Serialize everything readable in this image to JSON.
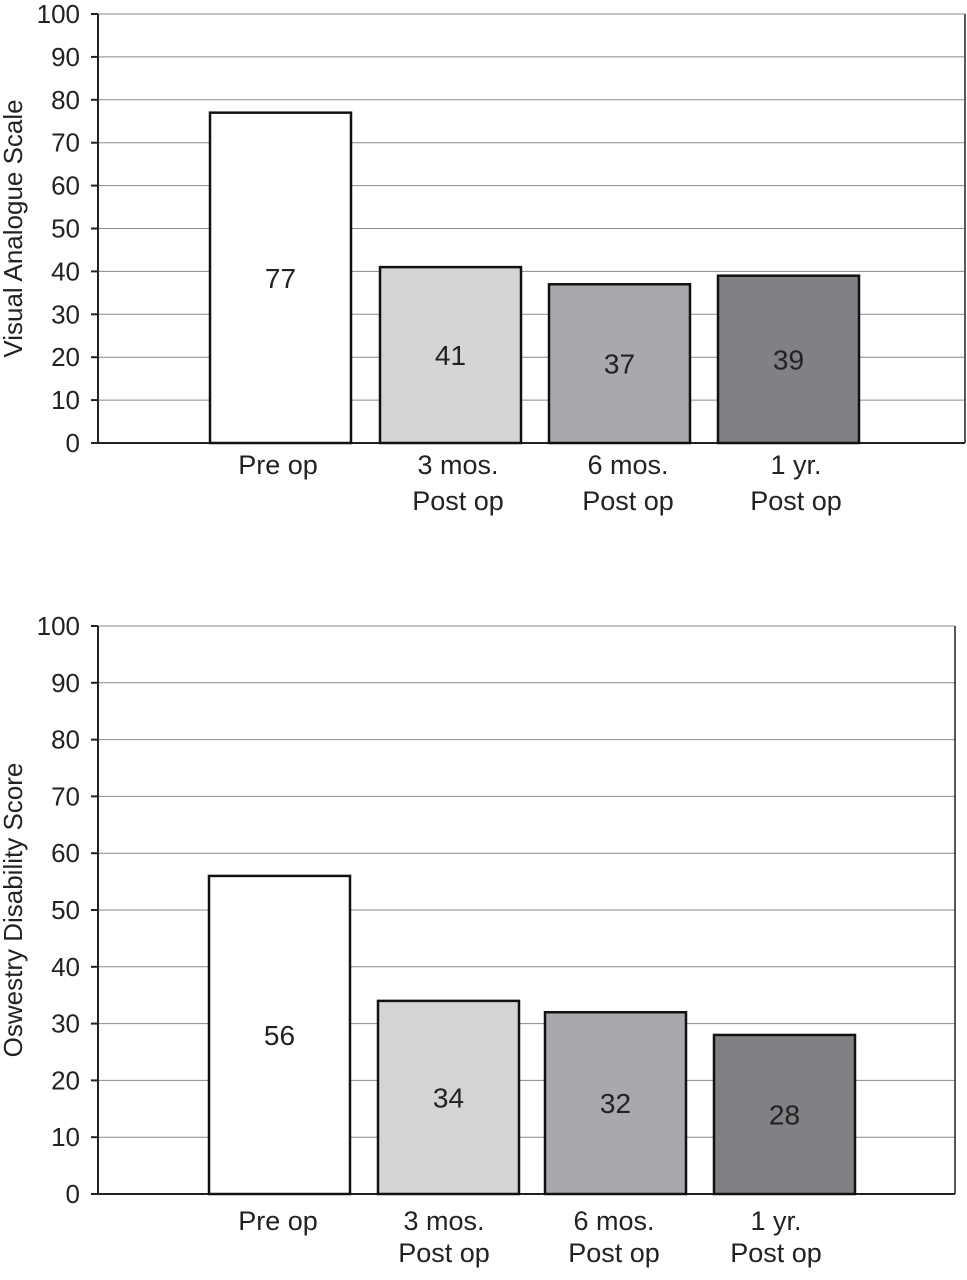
{
  "chart_data": [
    {
      "type": "bar",
      "ylabel": "Visual Analogue Scale",
      "xlabel": "",
      "ylim": [
        0,
        100
      ],
      "yticks": [
        0,
        10,
        20,
        30,
        40,
        50,
        60,
        70,
        80,
        90,
        100
      ],
      "grid": true,
      "categories": [
        {
          "line1": "Pre op",
          "line2": ""
        },
        {
          "line1": "3 mos.",
          "line2": "Post op"
        },
        {
          "line1": "6 mos.",
          "line2": "Post op"
        },
        {
          "line1": "1 yr.",
          "line2": "Post op"
        }
      ],
      "values": [
        77,
        41,
        37,
        39
      ],
      "colors": [
        "#ffffff",
        "#d3d4d6",
        "#a8a9ac",
        "#808184"
      ]
    },
    {
      "type": "bar",
      "ylabel": "Oswestry Disability Score",
      "xlabel": "",
      "ylim": [
        0,
        100
      ],
      "yticks": [
        0,
        10,
        20,
        30,
        40,
        50,
        60,
        70,
        80,
        90,
        100
      ],
      "grid": true,
      "categories": [
        {
          "line1": "Pre op",
          "line2": ""
        },
        {
          "line1": "3 mos.",
          "line2": "Post op"
        },
        {
          "line1": "6 mos.",
          "line2": "Post op"
        },
        {
          "line1": "1 yr.",
          "line2": "Post op"
        }
      ],
      "values": [
        56,
        34,
        32,
        28
      ],
      "colors": [
        "#ffffff",
        "#d3d4d6",
        "#a8a9ac",
        "#808184"
      ]
    }
  ]
}
